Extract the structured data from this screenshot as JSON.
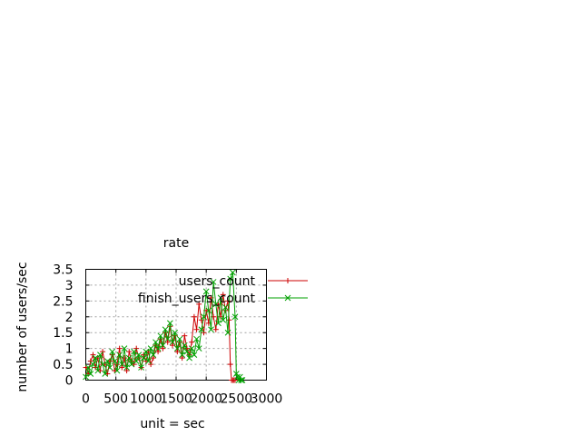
{
  "chart_data": {
    "type": "line",
    "title": "rate",
    "xlabel": "unit = sec",
    "ylabel": "number of users/sec",
    "xlim": [
      0,
      3000
    ],
    "ylim": [
      0,
      3.5
    ],
    "x_ticks": [
      0,
      500,
      1000,
      1500,
      2000,
      2500,
      3000
    ],
    "x_tick_labels": [
      "0",
      "500",
      "1000",
      "1500",
      "2000",
      "2500",
      "3000"
    ],
    "y_ticks": [
      0,
      0.5,
      1,
      1.5,
      2,
      2.5,
      3,
      3.5
    ],
    "y_tick_labels": [
      "0",
      "0.5",
      "1",
      "1.5",
      "2",
      "2.5",
      "3",
      "3.5"
    ],
    "grid": true,
    "legend_position": "top-right",
    "series": [
      {
        "name": "users_count",
        "color": "#cc0000",
        "marker": "plus",
        "x": [
          0,
          40,
          80,
          120,
          160,
          200,
          240,
          280,
          320,
          360,
          400,
          440,
          480,
          520,
          560,
          600,
          640,
          680,
          720,
          760,
          800,
          840,
          880,
          920,
          960,
          1000,
          1040,
          1080,
          1120,
          1160,
          1200,
          1240,
          1280,
          1320,
          1360,
          1400,
          1440,
          1480,
          1520,
          1560,
          1600,
          1640,
          1680,
          1720,
          1760,
          1800,
          1840,
          1880,
          1920,
          1960,
          2000,
          2040,
          2080,
          2120,
          2160,
          2200,
          2240,
          2280,
          2320,
          2360,
          2380,
          2400,
          2420,
          2440,
          2460,
          2480
        ],
        "values": [
          0.4,
          0.2,
          0.6,
          0.8,
          0.4,
          0.7,
          0.3,
          0.9,
          0.5,
          0.2,
          0.6,
          0.8,
          0.3,
          0.5,
          1.0,
          0.4,
          0.7,
          0.3,
          0.9,
          0.6,
          0.5,
          1.0,
          0.7,
          0.4,
          0.8,
          0.6,
          0.9,
          0.5,
          0.7,
          1.1,
          0.9,
          1.3,
          1.0,
          1.5,
          1.2,
          1.7,
          1.1,
          1.4,
          0.9,
          1.2,
          0.7,
          1.4,
          1.0,
          0.8,
          1.2,
          2.0,
          1.6,
          2.4,
          1.9,
          1.5,
          2.2,
          1.8,
          2.6,
          2.0,
          1.6,
          2.4,
          2.0,
          2.7,
          2.2,
          2.5,
          1.9,
          0.5,
          0.0,
          0.0,
          0.0,
          0.0
        ]
      },
      {
        "name": "finish_users_count",
        "color": "#00a000",
        "marker": "x",
        "x": [
          0,
          40,
          80,
          120,
          160,
          200,
          240,
          280,
          320,
          360,
          400,
          440,
          480,
          520,
          560,
          600,
          640,
          680,
          720,
          760,
          800,
          840,
          880,
          920,
          960,
          1000,
          1040,
          1080,
          1120,
          1160,
          1200,
          1240,
          1280,
          1320,
          1360,
          1400,
          1440,
          1480,
          1520,
          1560,
          1600,
          1640,
          1680,
          1720,
          1760,
          1800,
          1840,
          1880,
          1920,
          1960,
          2000,
          2040,
          2080,
          2120,
          2160,
          2200,
          2240,
          2280,
          2320,
          2360,
          2400,
          2440,
          2480,
          2500,
          2520,
          2540,
          2560,
          2580,
          2600
        ],
        "values": [
          0.1,
          0.4,
          0.2,
          0.5,
          0.7,
          0.3,
          0.8,
          0.5,
          0.2,
          0.6,
          0.4,
          0.9,
          0.6,
          0.3,
          0.8,
          0.5,
          1.0,
          0.4,
          0.7,
          0.5,
          0.9,
          0.6,
          0.8,
          0.4,
          0.7,
          0.9,
          0.6,
          1.0,
          0.8,
          1.2,
          1.0,
          1.4,
          1.1,
          1.6,
          1.3,
          1.8,
          1.2,
          1.5,
          1.0,
          1.3,
          0.8,
          1.1,
          0.9,
          0.7,
          1.0,
          0.8,
          1.3,
          1.0,
          1.6,
          2.0,
          2.8,
          2.2,
          1.6,
          3.1,
          2.4,
          1.8,
          2.6,
          1.9,
          2.3,
          1.5,
          3.2,
          3.4,
          2.0,
          0.2,
          0.1,
          0.0,
          0.1,
          0.0,
          0.0
        ]
      }
    ]
  }
}
